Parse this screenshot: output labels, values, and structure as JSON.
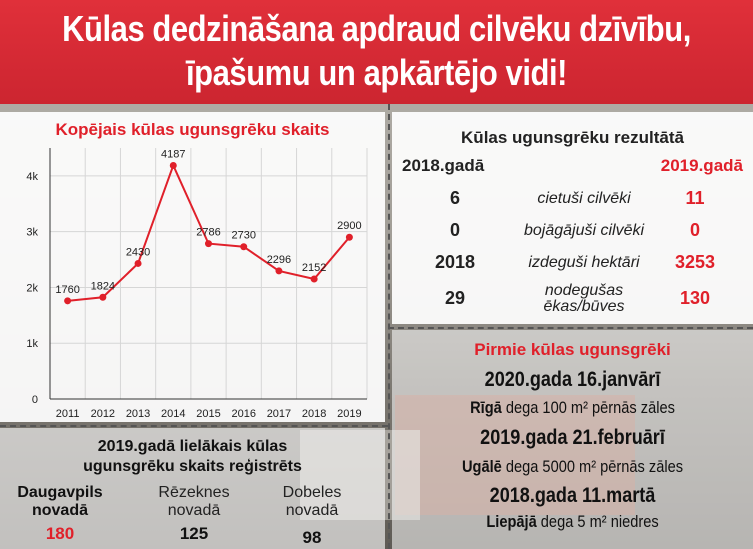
{
  "header": {
    "title_line1": "Kūlas dedzināšana apdraud cilvēku dzīvību,",
    "title_line2": "īpašumu un apkārtējo vidi!"
  },
  "chart_data": {
    "type": "line",
    "title": "Kopējais kūlas ugunsgrēku skaits",
    "categories": [
      "2011",
      "2012",
      "2013",
      "2014",
      "2015",
      "2016",
      "2017",
      "2018",
      "2019"
    ],
    "values": [
      1760,
      1824,
      2430,
      4187,
      2786,
      2730,
      2296,
      2152,
      2900
    ],
    "ylim": [
      0,
      4500
    ],
    "yticks": [
      {
        "value": 0,
        "label": "0"
      },
      {
        "value": 1000,
        "label": "1k"
      },
      {
        "value": 2000,
        "label": "2k"
      },
      {
        "value": 3000,
        "label": "3k"
      },
      {
        "value": 4000,
        "label": "4k"
      }
    ],
    "grid": true,
    "color": "#e0202a"
  },
  "results": {
    "title": "Kūlas ugunsgrēku rezultātā",
    "year_a": "2018.gadā",
    "year_b": "2019.gadā",
    "rows": [
      {
        "a": "6",
        "label": "cietuši cilvēki",
        "b": "11"
      },
      {
        "a": "0",
        "label": "bojāgājuši cilvēki",
        "b": "0"
      },
      {
        "a": "2018",
        "label": "izdeguši hektāri",
        "b": "3253"
      },
      {
        "a": "29",
        "label": "nodegušas ēkas/būves",
        "b": "130"
      }
    ]
  },
  "first_fires": {
    "title": "Pirmie kūlas ugunsgrēki",
    "items": [
      {
        "date": "2020.gada 16.janvārī",
        "place": "Rīgā",
        "desc": "dega 100 m² pērnās zāles"
      },
      {
        "date": "2019.gada 21.februārī",
        "place": "Ugālē",
        "desc": "dega 5000 m² pērnās zāles"
      },
      {
        "date": "2018.gada 11.martā",
        "place": "Liepājā",
        "desc": "dega 5 m² niedres"
      }
    ]
  },
  "regions": {
    "title_line1": "2019.gadā lielākais kūlas",
    "title_line2": "ugunsgrēku skaits reģistrēts",
    "items": [
      {
        "name1": "Daugavpils",
        "name2": "novadā",
        "value": "180",
        "highlight": true
      },
      {
        "name1": "Rēzeknes",
        "name2": "novadā",
        "value": "125",
        "highlight": false
      },
      {
        "name1": "Dobeles",
        "name2": "novadā",
        "value": "98",
        "highlight": false
      }
    ]
  }
}
